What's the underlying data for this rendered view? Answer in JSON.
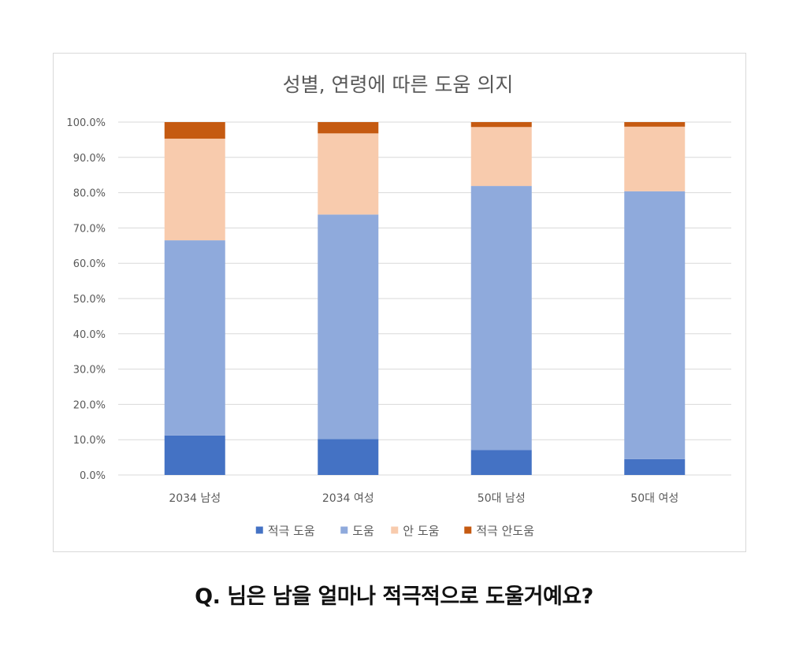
{
  "chart_data": {
    "type": "bar",
    "stacked": true,
    "title": "성별, 연령에 따른 도움 의지",
    "categories": [
      "2034 남성",
      "2034 여성",
      "50대 남성",
      "50대 여성"
    ],
    "series": [
      {
        "name": "적극 도움",
        "color": "#4472c4",
        "values": [
          11.2,
          10.2,
          7.1,
          4.5
        ]
      },
      {
        "name": "도움",
        "color": "#8faadc",
        "values": [
          55.3,
          63.6,
          74.8,
          75.9
        ]
      },
      {
        "name": "안 도움",
        "color": "#f8cbad",
        "values": [
          28.8,
          23.0,
          16.7,
          18.3
        ]
      },
      {
        "name": "적극 안도움",
        "color": "#c55a11",
        "values": [
          4.7,
          3.2,
          1.4,
          1.3
        ]
      }
    ],
    "yticks": [
      "0.0%",
      "10.0%",
      "20.0%",
      "30.0%",
      "40.0%",
      "50.0%",
      "60.0%",
      "70.0%",
      "80.0%",
      "90.0%",
      "100.0%"
    ],
    "ylim": [
      0,
      100
    ],
    "grid": true,
    "legend_position": "bottom"
  },
  "caption": "Q. 님은 남을 얼마나 적극적으로 도울거예요?"
}
